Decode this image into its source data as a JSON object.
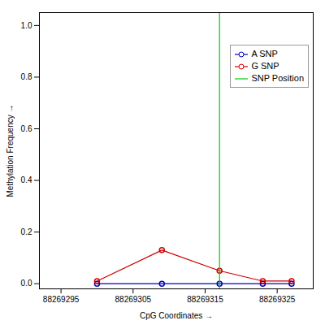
{
  "chart_data": {
    "type": "line",
    "xlabel": "CpG Coordinates",
    "ylabel": "Methylation Frequency",
    "x": [
      88269300,
      88269309,
      88269317,
      88269323,
      88269327
    ],
    "series": [
      {
        "name": "A SNP",
        "color": "#0000bb",
        "marker": "circle",
        "values": [
          0.0,
          0.0,
          0.0,
          0.0,
          0.0
        ]
      },
      {
        "name": "G SNP",
        "color": "#cc0000",
        "marker": "circle",
        "values": [
          0.01,
          0.13,
          0.05,
          0.01,
          0.01
        ]
      }
    ],
    "vline": {
      "name": "SNP Position",
      "color": "#00cc00",
      "x": 88269317
    },
    "xlim": [
      88269292,
      88269330
    ],
    "ylim": [
      -0.02,
      1.05
    ],
    "xticks": [
      88269295,
      88269305,
      88269315,
      88269325
    ],
    "yticks": [
      {
        "value": 0.0,
        "label": "0.0"
      },
      0.2,
      0.4,
      0.6,
      0.8,
      {
        "value": 1.0,
        "label": "1.0"
      }
    ],
    "grid": false,
    "legend": "upper right"
  }
}
